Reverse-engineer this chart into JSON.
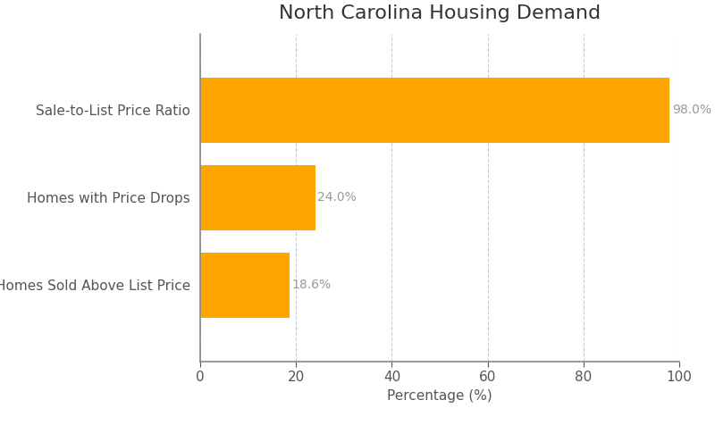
{
  "title": "North Carolina Housing Demand",
  "categories": [
    "Homes Sold Above List Price",
    "Homes with Price Drops",
    "Sale-to-List Price Ratio"
  ],
  "values": [
    18.6,
    24.0,
    98.0
  ],
  "bar_color": "#FFA500",
  "xlabel": "Percentage (%)",
  "xlim": [
    0,
    100
  ],
  "xticks": [
    0,
    20,
    40,
    60,
    80,
    100
  ],
  "title_fontsize": 16,
  "label_fontsize": 11,
  "tick_fontsize": 11,
  "annotation_fontsize": 10,
  "annotation_color": "#999999",
  "label_color": "#555555",
  "ylabel_color": "#555555",
  "background_color": "#ffffff",
  "grid_color": "#cccccc",
  "spine_color": "#888888",
  "bar_height": 0.75
}
